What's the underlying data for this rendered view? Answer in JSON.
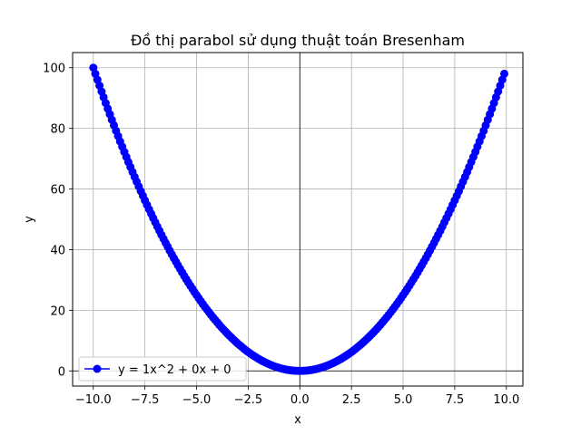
{
  "chart_data": {
    "type": "line",
    "title": "Đồ thị parabol sử dụng thuật toán Bresenham",
    "xlabel": "x",
    "ylabel": "y",
    "xlim": [
      -11.0,
      10.8
    ],
    "ylim": [
      -5,
      105
    ],
    "xticks": [
      -10.0,
      -7.5,
      -5.0,
      -2.5,
      0.0,
      2.5,
      5.0,
      7.5,
      10.0
    ],
    "xtick_labels": [
      "−10.0",
      "−7.5",
      "−5.0",
      "−2.5",
      "0.0",
      "2.5",
      "5.0",
      "7.5",
      "10.0"
    ],
    "yticks": [
      0,
      20,
      40,
      60,
      80,
      100
    ],
    "ytick_labels": [
      "0",
      "20",
      "40",
      "60",
      "80",
      "100"
    ],
    "grid": true,
    "reference_lines": {
      "x": 0,
      "y": 0
    },
    "legend_position": "lower-left",
    "series": [
      {
        "name": "y = 1x^2 + 0x + 0",
        "color": "#0000ff",
        "marker": "circle",
        "equation": {
          "a": 1,
          "b": 0,
          "c": 0
        },
        "x_range": [
          -10.0,
          9.9
        ],
        "x_step": 0.1
      }
    ]
  }
}
